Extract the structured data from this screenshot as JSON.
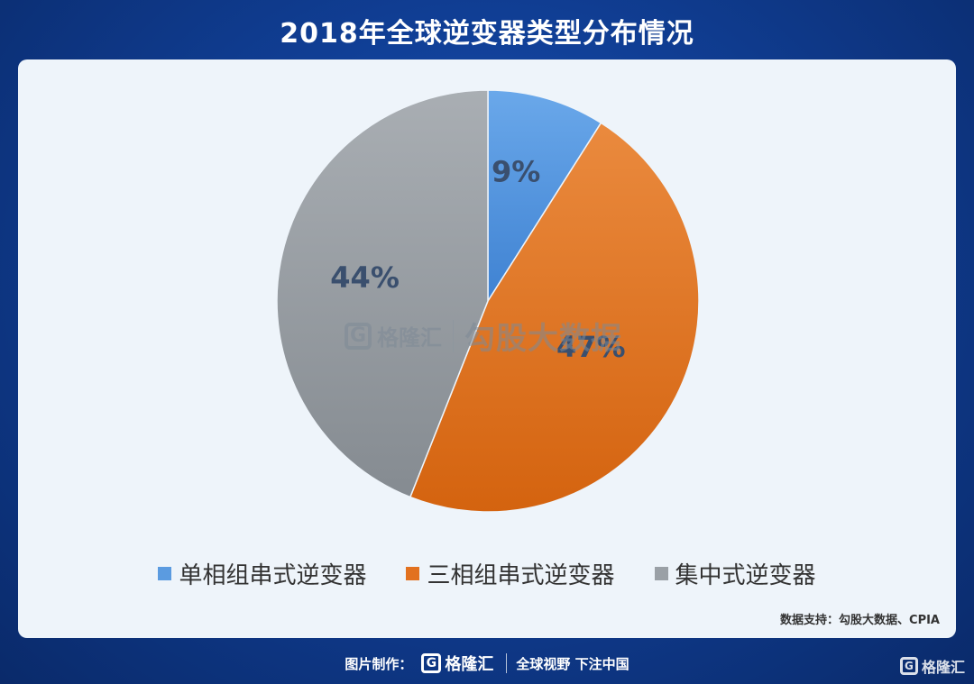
{
  "title": "2018年全球逆变器类型分布情况",
  "chart_data": {
    "type": "pie",
    "title": "2018年全球逆变器类型分布情况",
    "categories": [
      "单相组串式逆变器",
      "三相组串式逆变器",
      "集中式逆变器"
    ],
    "values": [
      9,
      47,
      44
    ],
    "labels": [
      "9%",
      "47%",
      "44%"
    ],
    "colors": [
      "#5b9be0",
      "#e2711f",
      "#9aa0a6"
    ],
    "legend_position": "bottom",
    "start_angle_deg": 0,
    "direction": "clockwise"
  },
  "watermark": {
    "badge": "G",
    "brand": "格隆汇",
    "text": "勾股大数据"
  },
  "source": "数据支持：勾股大数据、CPIA",
  "footer": {
    "made_by": "图片制作：",
    "badge": "G",
    "brand": "格隆汇",
    "slogan": "全球视野 下注中国"
  },
  "corner_logo": {
    "badge": "G",
    "brand": "格隆汇"
  }
}
